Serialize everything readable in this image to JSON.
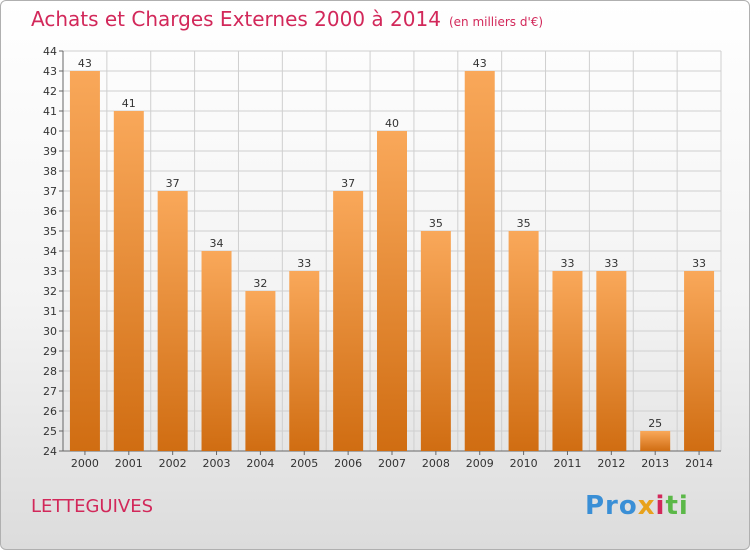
{
  "header": {
    "title": "Achats et Charges Externes 2000 à 2014",
    "subtitle": "(en milliers d'€)"
  },
  "footer": {
    "town": "LETTEGUIVES",
    "logo_parts": [
      "Pro",
      "x",
      "i",
      "ti"
    ]
  },
  "colors": {
    "title": "#d2285a",
    "bar_top": "#f9a85a",
    "bar_bottom": "#d06d12",
    "grid": "#cfcfcf"
  },
  "chart_data": {
    "type": "bar",
    "categories": [
      "2000",
      "2001",
      "2002",
      "2003",
      "2004",
      "2005",
      "2006",
      "2007",
      "2008",
      "2009",
      "2010",
      "2011",
      "2012",
      "2013",
      "2014"
    ],
    "values": [
      43,
      41,
      37,
      34,
      32,
      33,
      37,
      40,
      35,
      43,
      35,
      33,
      33,
      25,
      33
    ],
    "ylim": [
      24,
      44
    ],
    "yticks": [
      24,
      25,
      26,
      27,
      28,
      29,
      30,
      31,
      32,
      33,
      34,
      35,
      36,
      37,
      38,
      39,
      40,
      41,
      42,
      43,
      44
    ],
    "grid": true
  }
}
